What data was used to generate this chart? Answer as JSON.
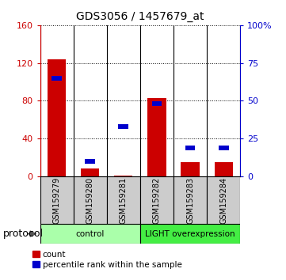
{
  "title": "GDS3056 / 1457679_at",
  "samples": [
    "GSM159279",
    "GSM159280",
    "GSM159281",
    "GSM159282",
    "GSM159283",
    "GSM159284"
  ],
  "count_values": [
    124,
    8,
    1,
    83,
    15,
    15
  ],
  "percentile_values": [
    65,
    10,
    33,
    48,
    19,
    19
  ],
  "left_ylim": [
    0,
    160
  ],
  "right_ylim": [
    0,
    100
  ],
  "left_yticks": [
    0,
    40,
    80,
    120,
    160
  ],
  "right_yticks": [
    0,
    25,
    50,
    75,
    100
  ],
  "right_yticklabels": [
    "0",
    "25",
    "50",
    "75",
    "100%"
  ],
  "left_yticklabels": [
    "0",
    "40",
    "80",
    "120",
    "160"
  ],
  "left_tick_color": "#cc0000",
  "right_tick_color": "#0000cc",
  "count_color": "#cc0000",
  "percentile_color": "#0000cc",
  "protocol_label": "protocol",
  "legend_count_label": "count",
  "legend_percentile_label": "percentile rank within the sample",
  "control_color": "#aaffaa",
  "light_color": "#44ee44",
  "label_bg_color": "#cccccc"
}
